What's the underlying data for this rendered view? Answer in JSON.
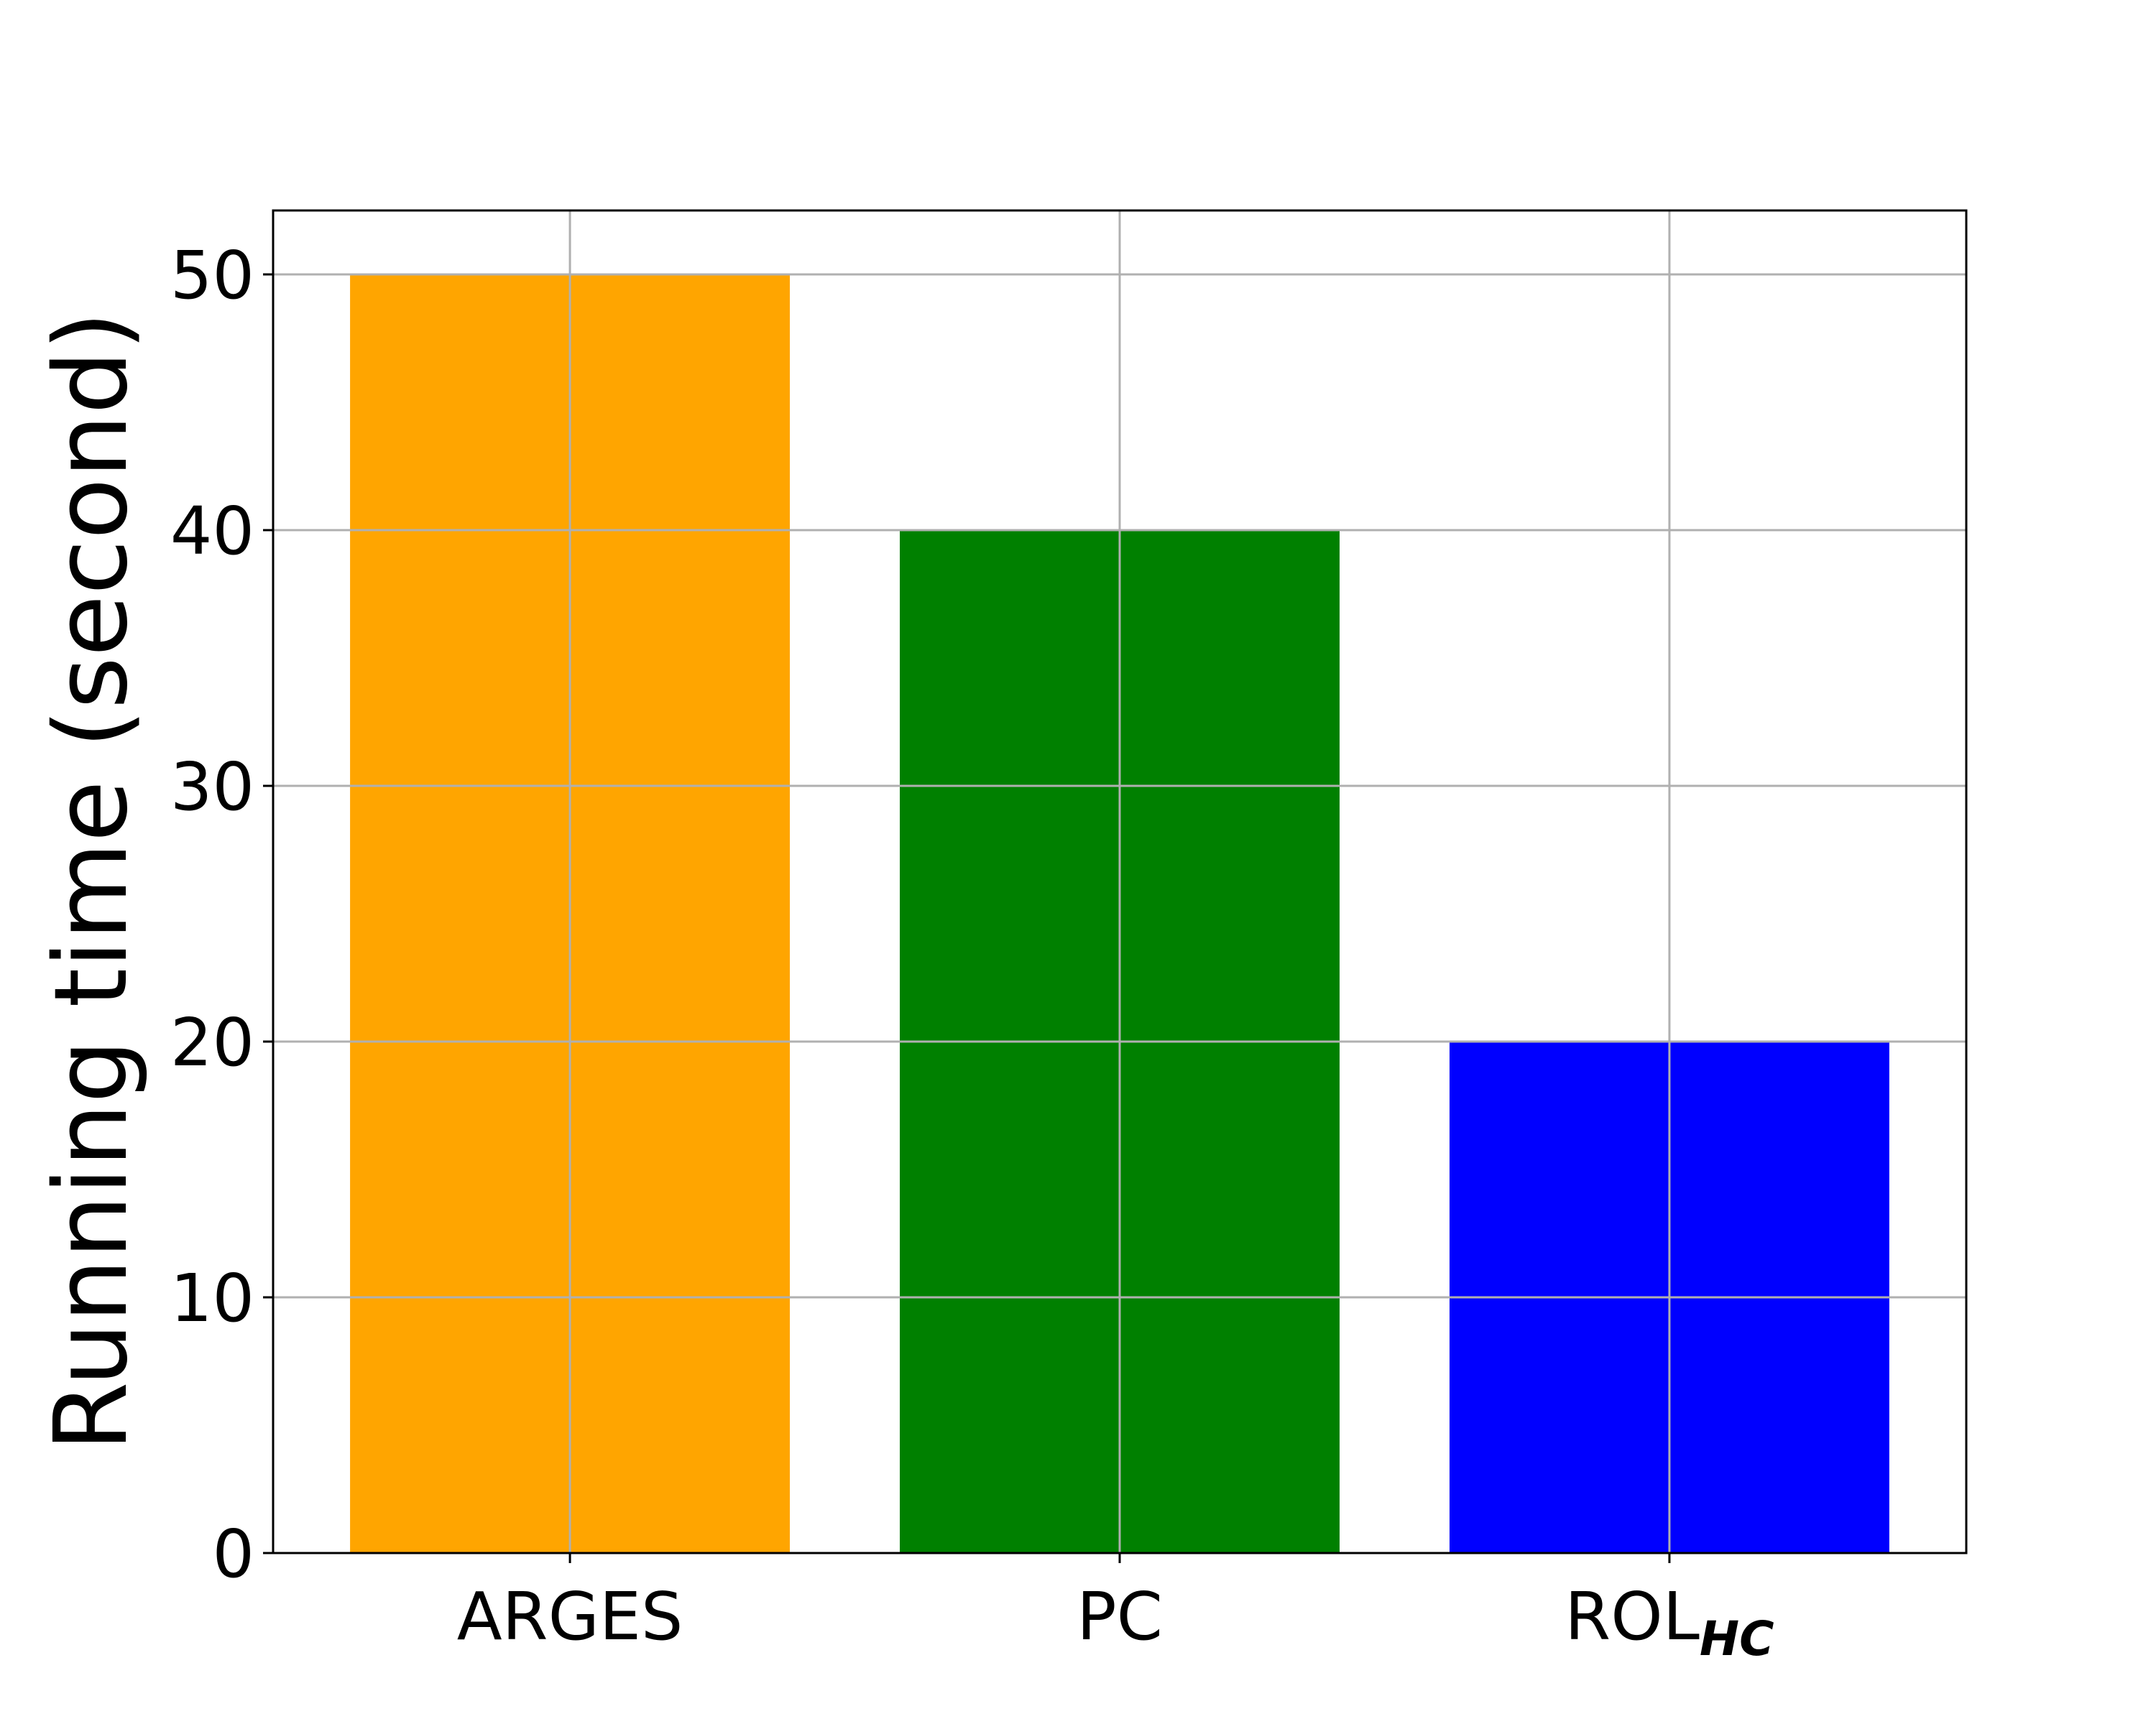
{
  "chart_data": {
    "type": "bar",
    "categories": [
      "ARGES",
      "PC",
      {
        "text": "ROL",
        "subscript": "HC"
      }
    ],
    "values": [
      50,
      40,
      20
    ],
    "colors": [
      "#ffa500",
      "#008000",
      "#0000ff"
    ],
    "ylabel": "Running time (second)",
    "ylim": [
      0,
      52.5
    ],
    "yticks": [
      0,
      10,
      20,
      30,
      40,
      50
    ],
    "xlim": [
      -0.54,
      2.54
    ],
    "grid": true
  }
}
